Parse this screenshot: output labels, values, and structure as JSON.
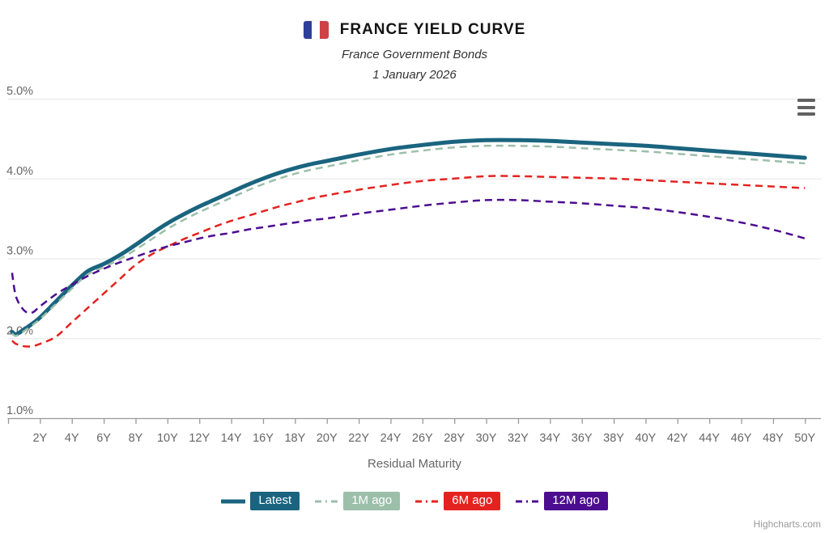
{
  "header": {
    "title": "FRANCE YIELD CURVE",
    "subtitle": "France Government Bonds",
    "as_of_date": "1 January 2026",
    "flag": {
      "blue": "#2D3F99",
      "white": "#FFFFFF",
      "red": "#CE4147"
    }
  },
  "context_menu": {
    "icon": "hamburger-menu-icon"
  },
  "credits": {
    "label": "Highcharts.com"
  },
  "chart_data": {
    "type": "line",
    "title": "FRANCE YIELD CURVE",
    "subtitle": "France Government Bonds",
    "as_of_date": "1 January 2026",
    "xlabel": "Residual Maturity",
    "ylabel": "",
    "xlim": [
      0,
      51
    ],
    "ylim": [
      1.0,
      5.0
    ],
    "grid": true,
    "legend_position": "bottom",
    "colors": {
      "grid": "#E6E6E6",
      "axis_line": "#999999",
      "tick": "#999999",
      "axis_label": "#666666"
    },
    "y_tick_values": [
      1.0,
      2.0,
      3.0,
      4.0,
      5.0
    ],
    "y_tick_labels": [
      "1.0%",
      "2.0%",
      "3.0%",
      "4.0%",
      "5.0%"
    ],
    "x_tick_values": [
      2,
      4,
      6,
      8,
      10,
      12,
      14,
      16,
      18,
      20,
      22,
      24,
      26,
      28,
      30,
      32,
      34,
      36,
      38,
      40,
      42,
      44,
      46,
      48,
      50
    ],
    "x_tick_labels": [
      "2Y",
      "4Y",
      "6Y",
      "8Y",
      "10Y",
      "12Y",
      "14Y",
      "16Y",
      "18Y",
      "20Y",
      "22Y",
      "24Y",
      "26Y",
      "28Y",
      "30Y",
      "32Y",
      "34Y",
      "36Y",
      "38Y",
      "40Y",
      "42Y",
      "44Y",
      "46Y",
      "48Y",
      "50Y"
    ],
    "maturities_years": [
      0.25,
      0.5,
      1,
      1.5,
      2,
      3,
      4,
      5,
      6,
      7,
      8,
      9,
      10,
      11,
      12,
      13,
      14,
      15,
      16,
      17,
      18,
      19,
      20,
      22,
      24,
      26,
      28,
      30,
      32,
      34,
      36,
      38,
      40,
      42,
      44,
      46,
      48,
      50
    ],
    "series": [
      {
        "name": "Latest",
        "color": "#1A647F",
        "dash": "solid",
        "line_width": 5,
        "values": [
          2.08,
          2.05,
          2.11,
          2.18,
          2.26,
          2.46,
          2.66,
          2.84,
          2.93,
          3.04,
          3.17,
          3.31,
          3.44,
          3.55,
          3.65,
          3.74,
          3.83,
          3.92,
          4.0,
          4.07,
          4.13,
          4.18,
          4.22,
          4.3,
          4.37,
          4.42,
          4.46,
          4.48,
          4.48,
          4.47,
          4.45,
          4.43,
          4.41,
          4.38,
          4.35,
          4.32,
          4.29,
          4.26
        ]
      },
      {
        "name": "1M ago",
        "color": "#9CBFAA",
        "dash": "dashed",
        "line_width": 2.5,
        "values": [
          2.06,
          2.03,
          2.09,
          2.16,
          2.24,
          2.43,
          2.62,
          2.8,
          2.89,
          2.99,
          3.11,
          3.24,
          3.37,
          3.48,
          3.58,
          3.67,
          3.76,
          3.85,
          3.93,
          4.0,
          4.06,
          4.11,
          4.15,
          4.23,
          4.3,
          4.35,
          4.39,
          4.41,
          4.41,
          4.4,
          4.38,
          4.36,
          4.34,
          4.31,
          4.28,
          4.25,
          4.22,
          4.19
        ]
      },
      {
        "name": "6M ago",
        "color": "#E42320",
        "dash": "dashed",
        "line_width": 2.5,
        "values": [
          1.97,
          1.93,
          1.9,
          1.9,
          1.93,
          2.02,
          2.2,
          2.38,
          2.56,
          2.74,
          2.92,
          3.05,
          3.15,
          3.24,
          3.32,
          3.4,
          3.47,
          3.53,
          3.59,
          3.65,
          3.7,
          3.75,
          3.79,
          3.86,
          3.92,
          3.97,
          4.0,
          4.03,
          4.03,
          4.02,
          4.01,
          4.0,
          3.98,
          3.96,
          3.94,
          3.92,
          3.9,
          3.88
        ]
      },
      {
        "name": "12M ago",
        "color": "#4C0D90",
        "dash": "dashed",
        "line_width": 2.5,
        "values": [
          2.82,
          2.52,
          2.35,
          2.32,
          2.4,
          2.55,
          2.67,
          2.78,
          2.87,
          2.95,
          3.02,
          3.09,
          3.15,
          3.2,
          3.25,
          3.29,
          3.32,
          3.36,
          3.39,
          3.42,
          3.45,
          3.48,
          3.5,
          3.56,
          3.61,
          3.66,
          3.7,
          3.73,
          3.73,
          3.71,
          3.69,
          3.66,
          3.63,
          3.58,
          3.52,
          3.45,
          3.36,
          3.25
        ]
      }
    ]
  }
}
